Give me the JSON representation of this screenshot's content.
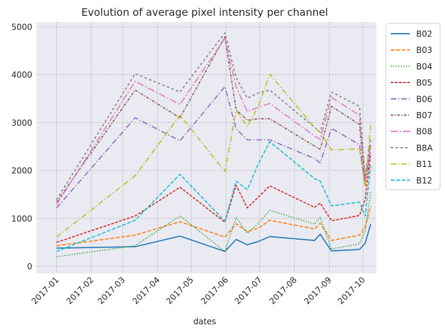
{
  "chart_data": {
    "type": "line",
    "title": "Evolution of average pixel intensity per channel",
    "xlabel": "dates",
    "ylabel": "",
    "grid": true,
    "legend_position": "outside-top-right",
    "x_ticks": [
      "2017-01",
      "2017-02",
      "2017-03",
      "2017-04",
      "2017-05",
      "2017-06",
      "2017-07",
      "2017-08",
      "2017-09",
      "2017-10"
    ],
    "y_ticks": [
      0,
      1000,
      2000,
      3000,
      4000,
      5000
    ],
    "ylim": [
      -150,
      5100
    ],
    "x": [
      "2017-01-01",
      "2017-03-12",
      "2017-04-21",
      "2017-05-31",
      "2017-06-10",
      "2017-06-20",
      "2017-06-30",
      "2017-07-10",
      "2017-08-19",
      "2017-08-24",
      "2017-09-03",
      "2017-09-28",
      "2017-10-03",
      "2017-10-08"
    ],
    "series": [
      {
        "name": "B02",
        "color": "#1f77b4",
        "dash": "solid",
        "values": [
          380,
          410,
          630,
          310,
          560,
          450,
          520,
          620,
          540,
          670,
          320,
          350,
          480,
          880
        ]
      },
      {
        "name": "B03",
        "color": "#ff7f0e",
        "dash": "dashed",
        "values": [
          430,
          650,
          930,
          610,
          890,
          720,
          800,
          960,
          780,
          900,
          540,
          650,
          820,
          1250
        ]
      },
      {
        "name": "B04",
        "color": "#2ca02c",
        "dash": "dotted",
        "values": [
          200,
          430,
          1050,
          310,
          1020,
          690,
          900,
          1170,
          880,
          1020,
          360,
          470,
          750,
          1550
        ]
      },
      {
        "name": "B05",
        "color": "#d62728",
        "dash": "densely-dashed",
        "values": [
          500,
          1050,
          1650,
          920,
          1690,
          1220,
          1450,
          1680,
          1230,
          1320,
          950,
          1060,
          1400,
          2350
        ]
      },
      {
        "name": "B06",
        "color": "#9467bd",
        "dash": "dashdot",
        "values": [
          1220,
          3100,
          2620,
          3750,
          2870,
          2640,
          2640,
          2640,
          2250,
          2160,
          2880,
          2540,
          1700,
          2400
        ]
      },
      {
        "name": "B07",
        "color": "#8c564b",
        "dash": "densely-dashdot",
        "values": [
          1340,
          3680,
          3100,
          4790,
          3270,
          3050,
          3080,
          3080,
          2510,
          2440,
          3340,
          2960,
          1700,
          2550
        ]
      },
      {
        "name": "B08",
        "color": "#e377c2",
        "dash": "long-dashdot",
        "values": [
          1290,
          3860,
          3380,
          4760,
          3750,
          3230,
          3320,
          3400,
          2720,
          2650,
          3530,
          3150,
          1800,
          2550
        ]
      },
      {
        "name": "B8A",
        "color": "#7f7f7f",
        "dash": "loose-dashed",
        "values": [
          1390,
          4020,
          3640,
          4870,
          3940,
          3510,
          3620,
          3680,
          2900,
          2800,
          3640,
          3340,
          1900,
          2650
        ]
      },
      {
        "name": "B11",
        "color": "#bcbd22",
        "dash": "dashdot",
        "values": [
          610,
          1890,
          3150,
          1980,
          3250,
          2920,
          3350,
          4010,
          2900,
          2790,
          2430,
          2450,
          1650,
          2950
        ]
      },
      {
        "name": "B12",
        "color": "#17becf",
        "dash": "dashed",
        "values": [
          310,
          960,
          1920,
          940,
          1780,
          1600,
          2150,
          2600,
          1830,
          1780,
          1260,
          1340,
          1050,
          2100
        ]
      }
    ]
  }
}
